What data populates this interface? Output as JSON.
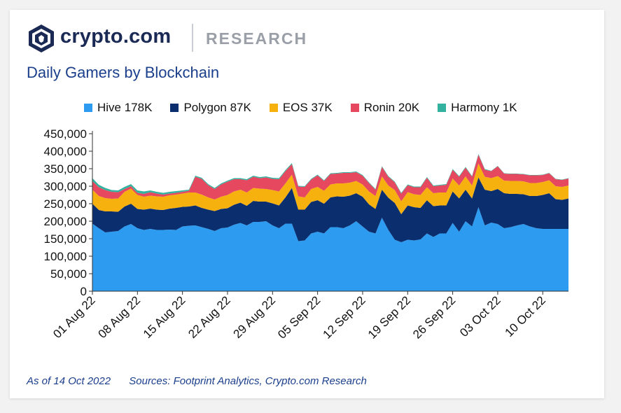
{
  "brand": {
    "name": "crypto.com",
    "section": "RESEARCH",
    "logo_icon": "crypto-com-lion-shield-icon"
  },
  "chart_title": "Daily Gamers by Blockchain",
  "footer": {
    "as_of": "As of 14 Oct 2022",
    "sources": "Sources: Footprint Analytics, Crypto.com Research"
  },
  "chart_data": {
    "type": "area",
    "stacked": true,
    "title": "Daily Gamers by Blockchain",
    "ylim": [
      0,
      450000
    ],
    "yticks": [
      0,
      50000,
      100000,
      150000,
      200000,
      250000,
      300000,
      350000,
      400000,
      450000
    ],
    "ytick_labels": [
      "0",
      "50,000",
      "100,000",
      "150,000",
      "200,000",
      "250,000",
      "300,000",
      "350,000",
      "400,000",
      "450,000"
    ],
    "xtick_labels": [
      "01 Aug 22",
      "08 Aug 22",
      "15 Aug 22",
      "22 Aug 22",
      "29 Aug 22",
      "05 Sep 22",
      "12 Sep 22",
      "19 Sep 22",
      "26 Sep 22",
      "03 Oct 22",
      "10 Oct 22"
    ],
    "x_start": "2022-08-01",
    "x_end": "2022-10-14",
    "legend_position": "top",
    "grid": false,
    "series": [
      {
        "name": "Hive",
        "legend": "Hive 178K",
        "color": "#2d9cf0",
        "values": [
          193000,
          180000,
          168000,
          170000,
          172000,
          185000,
          192000,
          180000,
          175000,
          178000,
          175000,
          175000,
          176000,
          175000,
          185000,
          187000,
          188000,
          183000,
          178000,
          172000,
          180000,
          182000,
          190000,
          195000,
          188000,
          198000,
          198000,
          200000,
          188000,
          180000,
          193000,
          193000,
          143000,
          145000,
          165000,
          170000,
          165000,
          183000,
          183000,
          180000,
          188000,
          200000,
          185000,
          170000,
          165000,
          210000,
          175000,
          147000,
          140000,
          147000,
          145000,
          148000,
          165000,
          155000,
          165000,
          165000,
          195000,
          170000,
          200000,
          185000,
          240000,
          188000,
          196000,
          192000,
          180000,
          183000,
          188000,
          192000,
          185000,
          180000,
          178000,
          178000,
          178000,
          178000,
          178000
        ]
      },
      {
        "name": "Polygon",
        "legend": "Polygon 87K",
        "color": "#0b2e6f",
        "values": [
          57000,
          52000,
          60000,
          58000,
          55000,
          57000,
          58000,
          55000,
          58000,
          58000,
          58000,
          57000,
          60000,
          63000,
          56000,
          55000,
          57000,
          55000,
          55000,
          57000,
          55000,
          55000,
          57000,
          58000,
          56000,
          60000,
          58000,
          56000,
          63000,
          65000,
          75000,
          102000,
          90000,
          88000,
          90000,
          90000,
          85000,
          85000,
          88000,
          90000,
          85000,
          80000,
          85000,
          78000,
          70000,
          80000,
          92000,
          105000,
          80000,
          98000,
          95000,
          90000,
          95000,
          88000,
          80000,
          80000,
          90000,
          95000,
          90000,
          80000,
          85000,
          102000,
          90000,
          100000,
          100000,
          95000,
          90000,
          85000,
          87000,
          92000,
          97000,
          102000,
          85000,
          83000,
          87000
        ]
      },
      {
        "name": "EOS",
        "legend": "EOS 37K",
        "color": "#f7b10e",
        "values": [
          40000,
          40000,
          38000,
          36000,
          38000,
          42000,
          43000,
          40000,
          37000,
          37000,
          38000,
          38000,
          38000,
          38000,
          38000,
          40000,
          37000,
          38000,
          35000,
          33000,
          35000,
          38000,
          38000,
          37000,
          38000,
          37000,
          37000,
          36000,
          38000,
          40000,
          40000,
          38000,
          38000,
          35000,
          37000,
          38000,
          37000,
          37000,
          37000,
          38000,
          37000,
          35000,
          35000,
          37000,
          37000,
          38000,
          35000,
          37000,
          37000,
          38000,
          37000,
          37000,
          37000,
          37000,
          37000,
          37000,
          37000,
          37000,
          38000,
          37000,
          40000,
          37000,
          37000,
          37000,
          36000,
          37000,
          37000,
          37000,
          37000,
          37000,
          37000,
          37000,
          37000,
          37000,
          37000
        ]
      },
      {
        "name": "Ronin",
        "legend": "Ronin 20K",
        "color": "#e5485f",
        "values": [
          25000,
          25000,
          23000,
          20000,
          18000,
          8000,
          7000,
          6000,
          8000,
          10000,
          8000,
          6000,
          5000,
          5000,
          5000,
          5000,
          45000,
          45000,
          35000,
          30000,
          35000,
          38000,
          35000,
          30000,
          35000,
          32000,
          30000,
          33000,
          32000,
          35000,
          35000,
          30000,
          28000,
          30000,
          27000,
          33000,
          28000,
          30000,
          28000,
          30000,
          28000,
          25000,
          25000,
          24000,
          18000,
          27000,
          25000,
          22000,
          22000,
          20000,
          20000,
          22000,
          27000,
          20000,
          20000,
          22000,
          25000,
          25000,
          25000,
          25000,
          25000,
          20000,
          20000,
          28000,
          20000,
          20000,
          20000,
          20000,
          22000,
          22000,
          20000,
          20000,
          20000,
          20000,
          20000
        ]
      },
      {
        "name": "Harmony",
        "legend": "Harmony 1K",
        "color": "#33b2a0",
        "values": [
          8000,
          7000,
          6000,
          5000,
          5000,
          6000,
          6000,
          7000,
          7000,
          5000,
          5000,
          5000,
          5000,
          5000,
          4000,
          3000,
          3000,
          3000,
          3000,
          3000,
          3000,
          3000,
          3000,
          3000,
          3000,
          3000,
          3000,
          3000,
          3000,
          3000,
          3000,
          3000,
          2000,
          2000,
          2000,
          2000,
          2000,
          2000,
          2000,
          2000,
          2000,
          2000,
          2000,
          2000,
          2000,
          2000,
          2000,
          2000,
          2000,
          2000,
          2000,
          2000,
          2000,
          2000,
          2000,
          2000,
          2000,
          2000,
          2000,
          2000,
          2000,
          2000,
          1000,
          1000,
          1000,
          1000,
          1000,
          1000,
          1000,
          1000,
          1000,
          1000,
          1000,
          1000,
          1000
        ]
      }
    ]
  }
}
